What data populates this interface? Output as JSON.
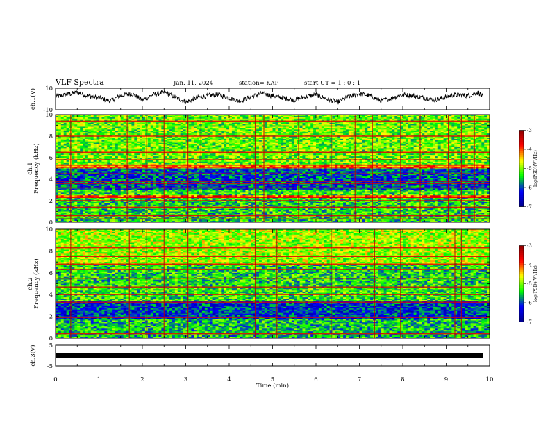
{
  "header": {
    "title": "VLF Spectra",
    "date": "Jan. 11, 2024",
    "station": "station= KAP",
    "start": "start UT = 1 : 0 : 1"
  },
  "chart_data": [
    {
      "type": "line",
      "panel": "ch1-waveform",
      "ylabel": "ch.1(V)",
      "ylim": [
        -10,
        10
      ],
      "yticks": [
        "10",
        "-10"
      ],
      "xlim": [
        0,
        10
      ],
      "description_series": "noisy waveform oscillating roughly between -6 and 7 V",
      "series": [
        {
          "x": [
            0.0,
            0.25,
            0.5,
            0.75,
            1.0,
            1.25,
            1.5,
            1.75,
            2.0,
            2.25,
            2.5,
            2.75,
            3.0,
            3.25,
            3.5,
            3.75,
            4.0,
            4.25,
            4.5,
            4.75,
            5.0,
            5.25,
            5.5,
            5.75,
            6.0,
            6.25,
            6.5,
            6.75,
            7.0,
            7.25,
            7.5,
            7.75,
            8.0,
            8.25,
            8.5,
            8.75,
            9.0,
            9.25,
            9.5,
            9.75,
            9.85
          ],
          "values": [
            2,
            4,
            6,
            3,
            1,
            -2,
            3,
            5,
            -1,
            4,
            6,
            2,
            -3,
            1,
            3,
            4,
            1,
            -2,
            2,
            5,
            3,
            1,
            -1,
            2,
            4,
            0,
            -3,
            2,
            5,
            3,
            -2,
            1,
            4,
            3,
            1,
            -1,
            2,
            4,
            3,
            6,
            2
          ]
        }
      ]
    },
    {
      "type": "heatmap",
      "panel": "ch1-spectrogram",
      "ylabel": "ch.1",
      "ylabel2": "Frequency (kHz)",
      "ylim": [
        0,
        10
      ],
      "yticks": [
        "0",
        "2",
        "4",
        "6",
        "8",
        "10"
      ],
      "xlim": [
        0,
        10
      ],
      "colorbar": {
        "label": "log(PSD)(V²/Hz)",
        "range": [
          -7,
          -3
        ],
        "ticks": [
          "-3",
          "-4",
          "-5",
          "-6",
          "-7"
        ]
      },
      "bands_khz": [
        {
          "low": 0,
          "high": 2.2,
          "level": -5.4
        },
        {
          "low": 2.2,
          "high": 2.5,
          "level": -4.0
        },
        {
          "low": 2.5,
          "high": 3.0,
          "level": -5.3
        },
        {
          "low": 3.0,
          "high": 5.0,
          "level": -6.0
        },
        {
          "low": 5.0,
          "high": 5.4,
          "level": -4.2
        },
        {
          "low": 5.4,
          "high": 10,
          "level": -5.1
        }
      ],
      "lines_khz": [
        0.3,
        0.6,
        1.4,
        2.0,
        2.3,
        3.2,
        3.6,
        3.8,
        4.5,
        5.1,
        5.3,
        5.8,
        6.5,
        8.0,
        9.4
      ],
      "bursts_min": [
        0.35,
        1.0,
        1.65,
        2.1,
        2.5,
        3.05,
        3.35,
        4.6,
        4.8,
        5.6,
        6.35,
        6.9,
        7.3,
        7.95,
        8.4,
        9.05,
        9.35,
        9.65
      ]
    },
    {
      "type": "heatmap",
      "panel": "ch2-spectrogram",
      "ylabel": "ch.2",
      "ylabel2": "Frequency (kHz)",
      "ylim": [
        0,
        10
      ],
      "yticks": [
        "0",
        "2",
        "4",
        "6",
        "8",
        "10"
      ],
      "xlim": [
        0,
        10
      ],
      "colorbar": {
        "label": "log(PSD)(V²/Hz)",
        "range": [
          -7,
          -3
        ],
        "ticks": [
          "-3",
          "-4",
          "-5",
          "-6",
          "-7"
        ]
      },
      "bands_khz": [
        {
          "low": 0,
          "high": 1.8,
          "level": -5.5
        },
        {
          "low": 1.8,
          "high": 3.4,
          "level": -6.1
        },
        {
          "low": 3.4,
          "high": 4.6,
          "level": -5.3
        },
        {
          "low": 4.6,
          "high": 6.8,
          "level": -5.4
        },
        {
          "low": 6.8,
          "high": 10,
          "level": -4.9
        }
      ],
      "lines_khz": [
        0.4,
        1.9,
        3.3,
        4.0,
        4.7,
        5.5,
        6.3,
        6.8,
        7.5,
        8.3
      ],
      "bursts_min": [
        0.35,
        1.7,
        2.1,
        2.5,
        3.05,
        4.6,
        5.1,
        6.35,
        7.35,
        7.95,
        9.2,
        9.35
      ]
    },
    {
      "type": "bar",
      "panel": "ch3-trace",
      "ylabel": "ch.3(V)",
      "ylim": [
        -5,
        5
      ],
      "yticks": [
        "5",
        "-5"
      ],
      "xlim": [
        0,
        10
      ],
      "level_v": [
        -0.5,
        0.5
      ]
    }
  ],
  "xaxis": {
    "label": "Time (min)",
    "ticks": [
      "0",
      "1",
      "2",
      "3",
      "4",
      "5",
      "6",
      "7",
      "8",
      "9",
      "10"
    ]
  },
  "colors": {
    "scale": [
      "#00008b",
      "#0000ff",
      "#00ff00",
      "#ffff00",
      "#ff0000",
      "#8b0000"
    ]
  }
}
